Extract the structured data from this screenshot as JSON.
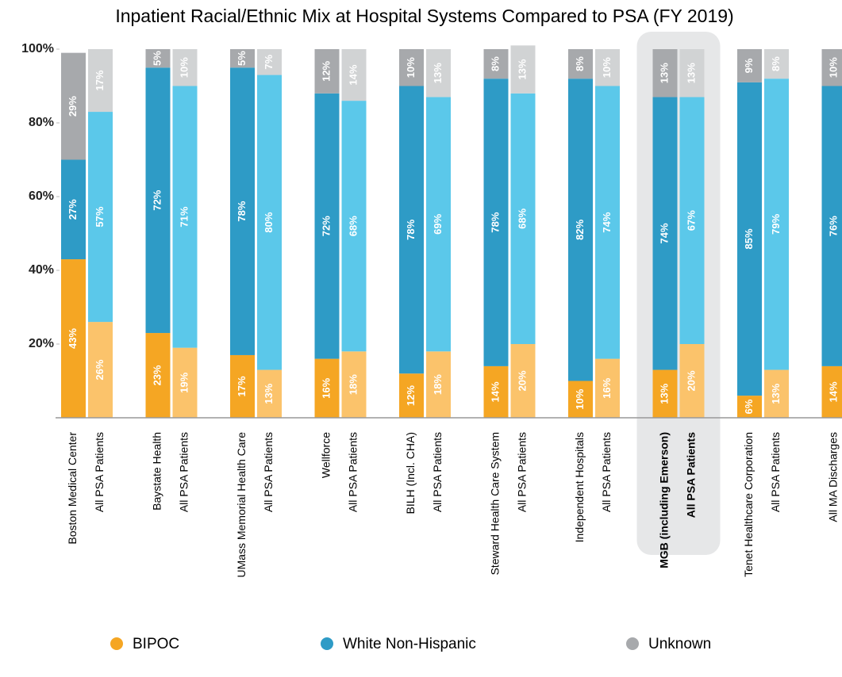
{
  "chart_data": {
    "type": "stacked_bar",
    "title": "Inpatient Racial/Ethnic Mix at Hospital Systems Compared to PSA (FY 2019)",
    "categories": [
      "Boston Medical Center",
      "All PSA Patients",
      "Baystate Health",
      "All PSA Patients",
      "UMass Memorial Health Care",
      "All PSA Patients",
      "Wellforce",
      "All PSA Patients",
      "BILH (Incl. CHA)",
      "All PSA Patients",
      "Steward Health Care System",
      "All PSA Patients",
      "Independent Hospitals",
      "All PSA Patients",
      "MGB (including Emerson)",
      "All PSA Patients",
      "Tenet Healthcare Corporation",
      "All PSA Patients",
      "All MA Discharges"
    ],
    "highlight": [
      14,
      15
    ],
    "series": [
      {
        "name": "BIPOC",
        "color": "#f5a623",
        "colors": [
          "#f5a623",
          "#fbc36b",
          "#f5a623",
          "#fbc36b",
          "#f5a623",
          "#fbc36b",
          "#f5a623",
          "#fbc36b",
          "#f5a623",
          "#fbc36b",
          "#f5a623",
          "#fbc36b",
          "#f5a623",
          "#fbc36b",
          "#f5a623",
          "#fbc36b",
          "#f5a623",
          "#fbc36b",
          "#f5a623"
        ],
        "values": [
          43,
          26,
          23,
          19,
          17,
          13,
          16,
          18,
          12,
          18,
          14,
          20,
          10,
          16,
          13,
          20,
          6,
          13,
          14
        ],
        "value_labels": [
          "43%",
          "26%",
          "23%",
          "19%",
          "17%",
          "13%",
          "16%",
          "18%",
          "12%",
          "18%",
          "14%",
          "20%",
          "10%",
          "16%",
          "13%",
          "20%",
          "6%",
          "13%",
          "14%"
        ]
      },
      {
        "name": "White Non-Hispanic",
        "color": "#2e9bc6",
        "colors": [
          "#2e9bc6",
          "#5bc8ea",
          "#2e9bc6",
          "#5bc8ea",
          "#2e9bc6",
          "#5bc8ea",
          "#2e9bc6",
          "#5bc8ea",
          "#2e9bc6",
          "#5bc8ea",
          "#2e9bc6",
          "#5bc8ea",
          "#2e9bc6",
          "#5bc8ea",
          "#2e9bc6",
          "#5bc8ea",
          "#2e9bc6",
          "#5bc8ea",
          "#2e9bc6"
        ],
        "values": [
          27,
          57,
          72,
          71,
          78,
          80,
          72,
          68,
          78,
          69,
          78,
          68,
          82,
          74,
          74,
          67,
          85,
          79,
          76
        ],
        "value_labels": [
          "27%",
          "57%",
          "72%",
          "71%",
          "78%",
          "80%",
          "72%",
          "68%",
          "78%",
          "69%",
          "78%",
          "68%",
          "82%",
          "74%",
          "74%",
          "67%",
          "85%",
          "79%",
          "76%"
        ]
      },
      {
        "name": "Unknown",
        "color": "#a7a9ac",
        "colors": [
          "#a7a9ac",
          "#d1d3d4",
          "#a7a9ac",
          "#d1d3d4",
          "#a7a9ac",
          "#d1d3d4",
          "#a7a9ac",
          "#d1d3d4",
          "#a7a9ac",
          "#d1d3d4",
          "#a7a9ac",
          "#d1d3d4",
          "#a7a9ac",
          "#d1d3d4",
          "#a7a9ac",
          "#d1d3d4",
          "#a7a9ac",
          "#d1d3d4",
          "#a7a9ac"
        ],
        "values": [
          29,
          17,
          5,
          10,
          5,
          7,
          12,
          14,
          10,
          13,
          8,
          13,
          8,
          10,
          13,
          13,
          9,
          8,
          10
        ],
        "value_labels": [
          "29%",
          "17%",
          "5%",
          "10%",
          "5%",
          "7%",
          "12%",
          "14%",
          "10%",
          "13%",
          "8%",
          "13%",
          "8%",
          "10%",
          "13%",
          "13%",
          "9%",
          "8%",
          "10%"
        ]
      }
    ],
    "ylim": [
      0,
      100
    ],
    "yticks": [
      {
        "value": 20,
        "label": "20%"
      },
      {
        "value": 40,
        "label": "40%"
      },
      {
        "value": 60,
        "label": "60%"
      },
      {
        "value": 80,
        "label": "80%"
      },
      {
        "value": 100,
        "label": "100%"
      }
    ],
    "grid": false
  }
}
